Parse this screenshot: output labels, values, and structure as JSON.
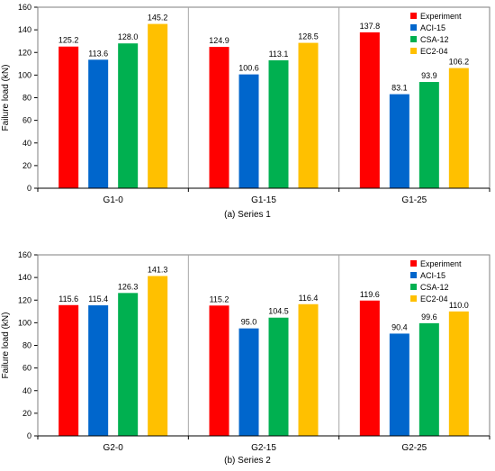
{
  "colors": {
    "Experiment": "#ff0000",
    "ACI-15": "#0066cc",
    "CSA-12": "#00b050",
    "EC2-04": "#ffc000"
  },
  "chart_data": [
    {
      "type": "bar",
      "caption": "(a) Series 1",
      "ylabel": "Failure load (kN)",
      "xlabel": "",
      "ylim": [
        0,
        160
      ],
      "yticks": [
        0,
        20,
        40,
        60,
        80,
        100,
        120,
        140,
        160
      ],
      "grid": "vertical separators between groups",
      "legend": "top-right",
      "categories": [
        "G1-0",
        "G1-15",
        "G1-25"
      ],
      "series": [
        {
          "name": "Experiment",
          "values": [
            125.2,
            124.9,
            137.8
          ],
          "labels": [
            "125.2",
            "124.9",
            "137.8"
          ]
        },
        {
          "name": "ACI-15",
          "values": [
            113.6,
            100.6,
            83.1
          ],
          "labels": [
            "113.6",
            "100.6",
            "83.1"
          ]
        },
        {
          "name": "CSA-12",
          "values": [
            128.0,
            113.1,
            93.9
          ],
          "labels": [
            "128.0",
            "113.1",
            "93.9"
          ]
        },
        {
          "name": "EC2-04",
          "values": [
            145.2,
            128.5,
            106.2
          ],
          "labels": [
            "145.2",
            "128.5",
            "106.2"
          ]
        }
      ]
    },
    {
      "type": "bar",
      "caption": "(b) Series 2",
      "ylabel": "Failure load (kN)",
      "xlabel": "",
      "ylim": [
        0,
        160
      ],
      "yticks": [
        0,
        20,
        40,
        60,
        80,
        100,
        120,
        140,
        160
      ],
      "grid": "vertical separators between groups",
      "legend": "top-right",
      "categories": [
        "G2-0",
        "G2-15",
        "G2-25"
      ],
      "series": [
        {
          "name": "Experiment",
          "values": [
            115.6,
            115.2,
            119.6
          ],
          "labels": [
            "115.6",
            "115.2",
            "119.6"
          ]
        },
        {
          "name": "ACI-15",
          "values": [
            115.4,
            95.0,
            90.4
          ],
          "labels": [
            "115.4",
            "95.0",
            "90.4"
          ]
        },
        {
          "name": "CSA-12",
          "values": [
            126.3,
            104.5,
            99.6
          ],
          "labels": [
            "126.3",
            "104.5",
            "99.6"
          ]
        },
        {
          "name": "EC2-04",
          "values": [
            141.3,
            116.4,
            110.0
          ],
          "labels": [
            "141.3",
            "116.4",
            "110.0"
          ]
        }
      ]
    }
  ]
}
